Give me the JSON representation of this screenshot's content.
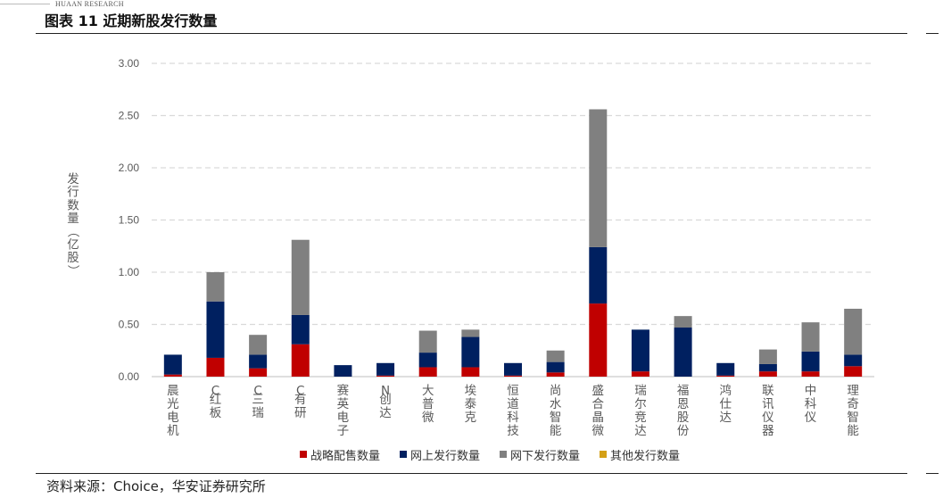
{
  "header": {
    "brand": "HUAAN RESEARCH",
    "title": "图表 11 近期新股发行数量"
  },
  "footer": {
    "source": "资料来源：Choice，华安证券研究所"
  },
  "colors": {
    "strategic": "#C00000",
    "online": "#002060",
    "offline": "#808080",
    "other": "#D4A017",
    "grid": "#D9D9D9",
    "axis_text": "#595959"
  },
  "chart_data": {
    "type": "bar",
    "stacked": true,
    "ylabel": "发行数量（亿股）",
    "xlabel": "",
    "ylim": [
      0,
      3
    ],
    "yticks": [
      "0.00",
      "0.50",
      "1.00",
      "1.50",
      "2.00",
      "2.50",
      "3.00"
    ],
    "grid": "horizontal dashed",
    "legend_position": "bottom",
    "categories": [
      "晨光电机",
      "C红板",
      "C三瑞",
      "C有研",
      "赛英电子",
      "N创达",
      "大普微",
      "埃泰克",
      "恒道科技",
      "尚水智能",
      "盛合晶微",
      "瑞尔竞达",
      "福恩股份",
      "鸿仕达",
      "联讯仪器",
      "中科仪",
      "理奇智能"
    ],
    "series": [
      {
        "name": "战略配售数量",
        "values": [
          0.02,
          0.18,
          0.08,
          0.31,
          0.0,
          0.01,
          0.09,
          0.09,
          0.01,
          0.04,
          0.7,
          0.05,
          0.0,
          0.01,
          0.05,
          0.05,
          0.1
        ]
      },
      {
        "name": "网上发行数量",
        "values": [
          0.19,
          0.54,
          0.13,
          0.28,
          0.11,
          0.12,
          0.14,
          0.29,
          0.12,
          0.1,
          0.54,
          0.4,
          0.47,
          0.12,
          0.07,
          0.19,
          0.11
        ]
      },
      {
        "name": "网下发行数量",
        "values": [
          0.0,
          0.28,
          0.19,
          0.72,
          0.0,
          0.0,
          0.21,
          0.07,
          0.0,
          0.11,
          1.32,
          0.0,
          0.11,
          0.0,
          0.14,
          0.28,
          0.44
        ]
      },
      {
        "name": "其他发行数量",
        "values": [
          0,
          0,
          0,
          0,
          0,
          0,
          0,
          0,
          0,
          0,
          0,
          0,
          0,
          0,
          0,
          0,
          0
        ]
      }
    ]
  }
}
